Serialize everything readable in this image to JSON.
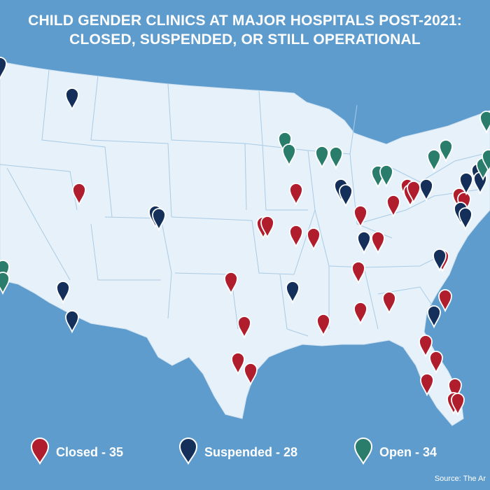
{
  "title": {
    "line1": "CHILD GENDER CLINICS AT MAJOR HOSPITALS POST-2021:",
    "line2": "CLOSED, SUSPENDED, OR STILL OPERATIONAL"
  },
  "legend": {
    "closed": "Closed - 35",
    "suspended": "Suspended - 28",
    "open": "Open - 34"
  },
  "source": "Source: The Ar",
  "colors": {
    "ocean": "#5e9ccd",
    "land": "#e6f1fa",
    "border": "#a9cbe6",
    "closed": "#b01e2d",
    "suspended": "#14305a",
    "open": "#2a7d6b"
  }
}
